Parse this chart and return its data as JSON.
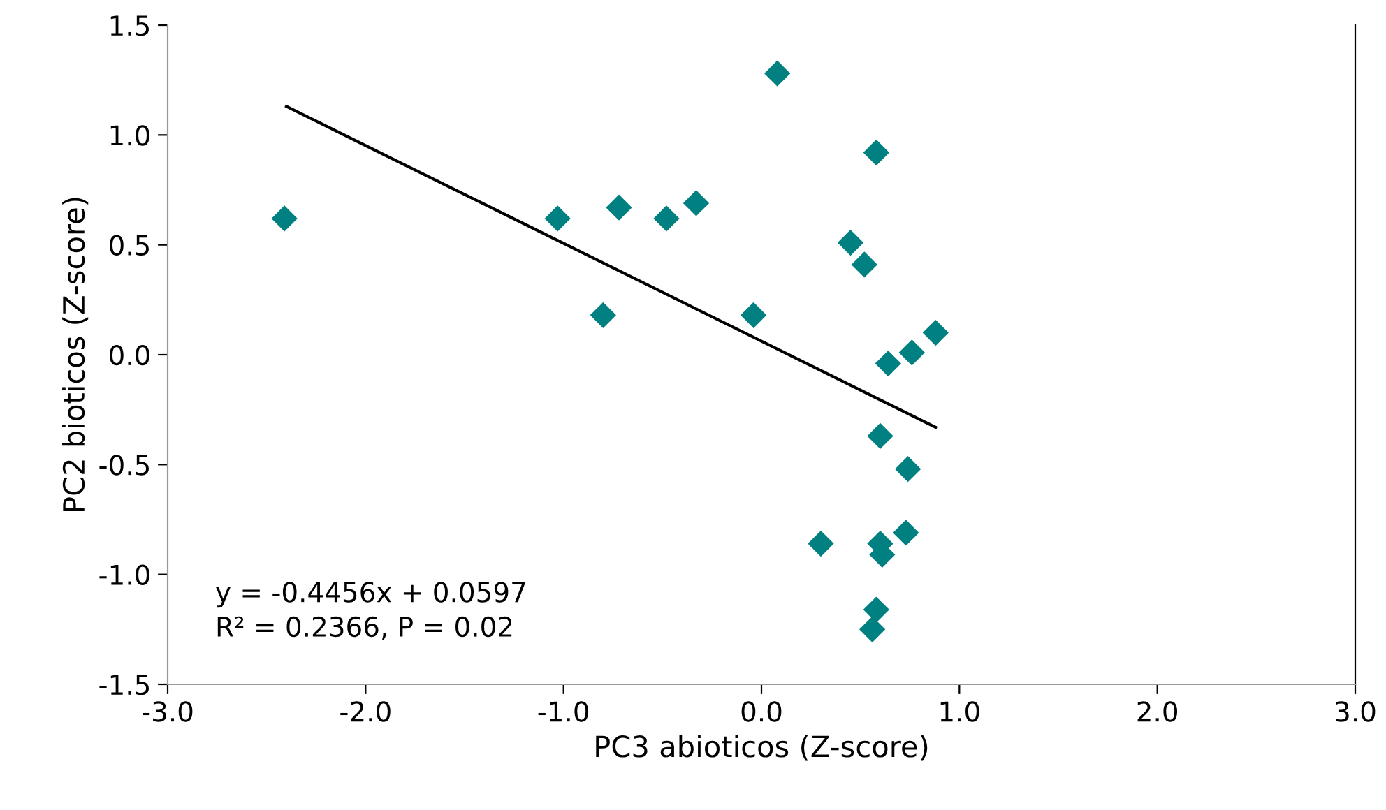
{
  "chart_data": {
    "type": "scatter",
    "xlabel": "PC3 abioticos (Z-score)",
    "ylabel": "PC2 bioticos (Z-score)",
    "series": [
      {
        "color": "#008080",
        "marker": "diamond",
        "x": [
          -2.41,
          -1.03,
          -0.72,
          -0.48,
          -0.33,
          -0.8,
          -0.04,
          0.08,
          0.58,
          0.45,
          0.52,
          0.76,
          0.88,
          0.64,
          0.6,
          0.74,
          0.3,
          0.6,
          0.61,
          0.73,
          0.58,
          0.56
        ],
        "values": [
          0.62,
          0.62,
          0.67,
          0.62,
          0.69,
          0.18,
          0.18,
          1.28,
          0.92,
          0.51,
          0.41,
          0.01,
          0.1,
          -0.04,
          -0.37,
          -0.52,
          -0.86,
          -0.86,
          -0.91,
          -0.81,
          -1.16,
          -1.25
        ]
      },
      {
        "type": "line",
        "color": "#000000",
        "marker": "none",
        "line_style": "solid",
        "x": [
          -2.4,
          0.88
        ],
        "values": [
          1.13,
          -0.33
        ]
      }
    ],
    "xlim": [
      -3.0,
      3.0
    ],
    "xticks": [
      {
        "value": -3,
        "label": "-3.0"
      },
      {
        "value": -2,
        "label": "-2.0"
      },
      {
        "value": -1,
        "label": "-1.0"
      },
      {
        "value": 0,
        "label": "0.0"
      },
      {
        "value": 1,
        "label": "1.0"
      },
      {
        "value": 2,
        "label": "2.0"
      },
      {
        "value": 3,
        "label": "3.0"
      }
    ],
    "ylim": [
      -1.5,
      1.5
    ],
    "yticks": [
      {
        "value": -1.5,
        "label": "-1.5"
      },
      {
        "value": -1,
        "label": "-1.0"
      },
      {
        "value": -0.5,
        "label": "-0.5"
      },
      {
        "value": 0,
        "label": "0.0"
      },
      {
        "value": 0.5,
        "label": "0.5"
      },
      {
        "value": 1,
        "label": "1.0"
      },
      {
        "value": 1.5,
        "label": "1.5"
      }
    ],
    "grid": false,
    "legend": false,
    "annotations": [
      "y = -0.4456x + 0.0597\nR² = 0.2366, P = 0.02"
    ]
  }
}
